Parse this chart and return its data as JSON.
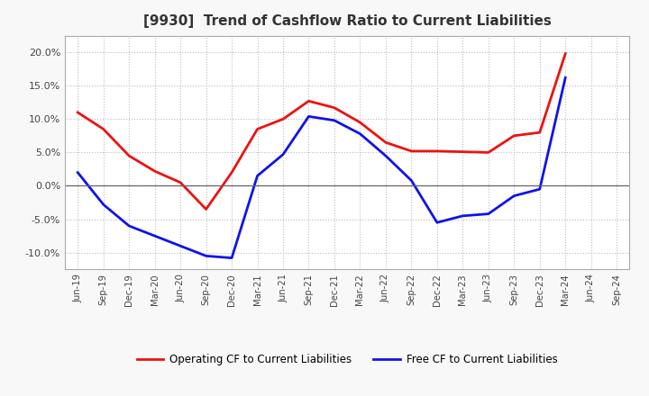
{
  "title": "[9930]  Trend of Cashflow Ratio to Current Liabilities",
  "x_labels": [
    "Jun-19",
    "Sep-19",
    "Dec-19",
    "Mar-20",
    "Jun-20",
    "Sep-20",
    "Dec-20",
    "Mar-21",
    "Jun-21",
    "Sep-21",
    "Dec-21",
    "Mar-22",
    "Jun-22",
    "Sep-22",
    "Dec-22",
    "Mar-23",
    "Jun-23",
    "Sep-23",
    "Dec-23",
    "Mar-24",
    "Jun-24",
    "Sep-24"
  ],
  "operating_cf": [
    11.0,
    8.5,
    4.5,
    2.2,
    0.5,
    -3.5,
    2.0,
    8.5,
    10.0,
    12.7,
    11.7,
    9.5,
    6.5,
    5.2,
    5.2,
    5.1,
    5.0,
    7.5,
    8.0,
    19.8,
    null,
    null
  ],
  "free_cf": [
    2.0,
    -2.8,
    -6.0,
    -7.5,
    -9.0,
    -10.5,
    -10.8,
    1.5,
    4.7,
    10.4,
    9.8,
    7.8,
    4.5,
    0.8,
    -5.5,
    -4.5,
    -4.2,
    -1.5,
    -0.5,
    16.2,
    null,
    null
  ],
  "operating_color": "#EE1111",
  "free_color": "#1111EE",
  "ylim": [
    -12.5,
    22.5
  ],
  "yticks": [
    -10.0,
    -5.0,
    0.0,
    5.0,
    10.0,
    15.0,
    20.0
  ],
  "bg_color": "#F8F8F8",
  "plot_bg_color": "#FFFFFF",
  "grid_color": "#BBBBBB",
  "title_color": "#333333",
  "tick_color": "#444444",
  "legend_labels": [
    "Operating CF to Current Liabilities",
    "Free CF to Current Liabilities"
  ]
}
